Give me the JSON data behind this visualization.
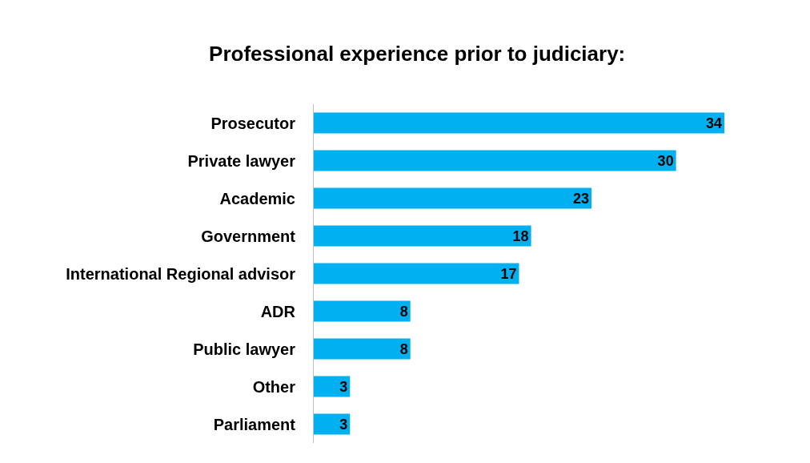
{
  "chart_data": {
    "type": "bar",
    "orientation": "horizontal",
    "title": "Professional experience prior to judiciary:",
    "categories": [
      "Prosecutor",
      "Private lawyer",
      "Academic",
      "Government",
      "International Regional advisor",
      "ADR",
      "Public lawyer",
      "Other",
      "Parliament"
    ],
    "values": [
      34,
      30,
      23,
      18,
      17,
      8,
      8,
      3,
      3
    ],
    "color": "#00b0f0",
    "data_labels": true
  }
}
